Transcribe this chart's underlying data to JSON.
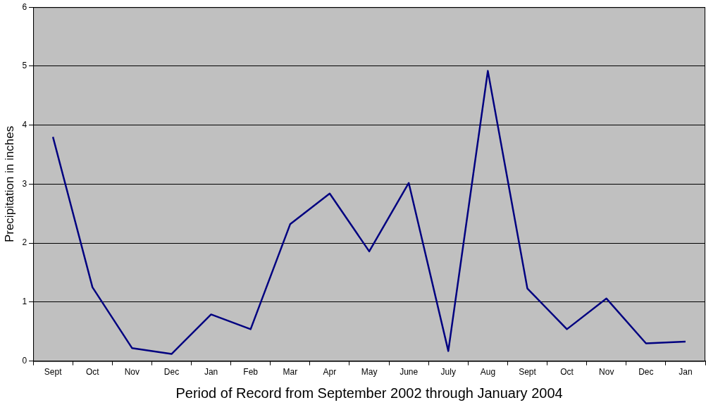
{
  "chart_data": {
    "type": "line",
    "xlabel": "Period of Record from September 2002 through January 2004",
    "ylabel": "Precipitation in inches",
    "categories": [
      "Sept",
      "Oct",
      "Nov",
      "Dec",
      "Jan",
      "Feb",
      "Mar",
      "Apr",
      "May",
      "June",
      "July",
      "Aug",
      "Sept",
      "Oct",
      "Nov",
      "Dec",
      "Jan"
    ],
    "series": [
      {
        "color": "#000080",
        "values": [
          3.8,
          1.25,
          0.22,
          0.12,
          0.79,
          0.54,
          2.32,
          2.84,
          1.86,
          3.02,
          0.17,
          4.92,
          1.23,
          0.54,
          1.06,
          0.3,
          0.33
        ]
      }
    ],
    "ylim": [
      0,
      6
    ],
    "yticks": [
      0,
      1,
      2,
      3,
      4,
      5,
      6
    ],
    "grid": "y",
    "legend": false,
    "marker": "none",
    "line_style": "solid"
  }
}
